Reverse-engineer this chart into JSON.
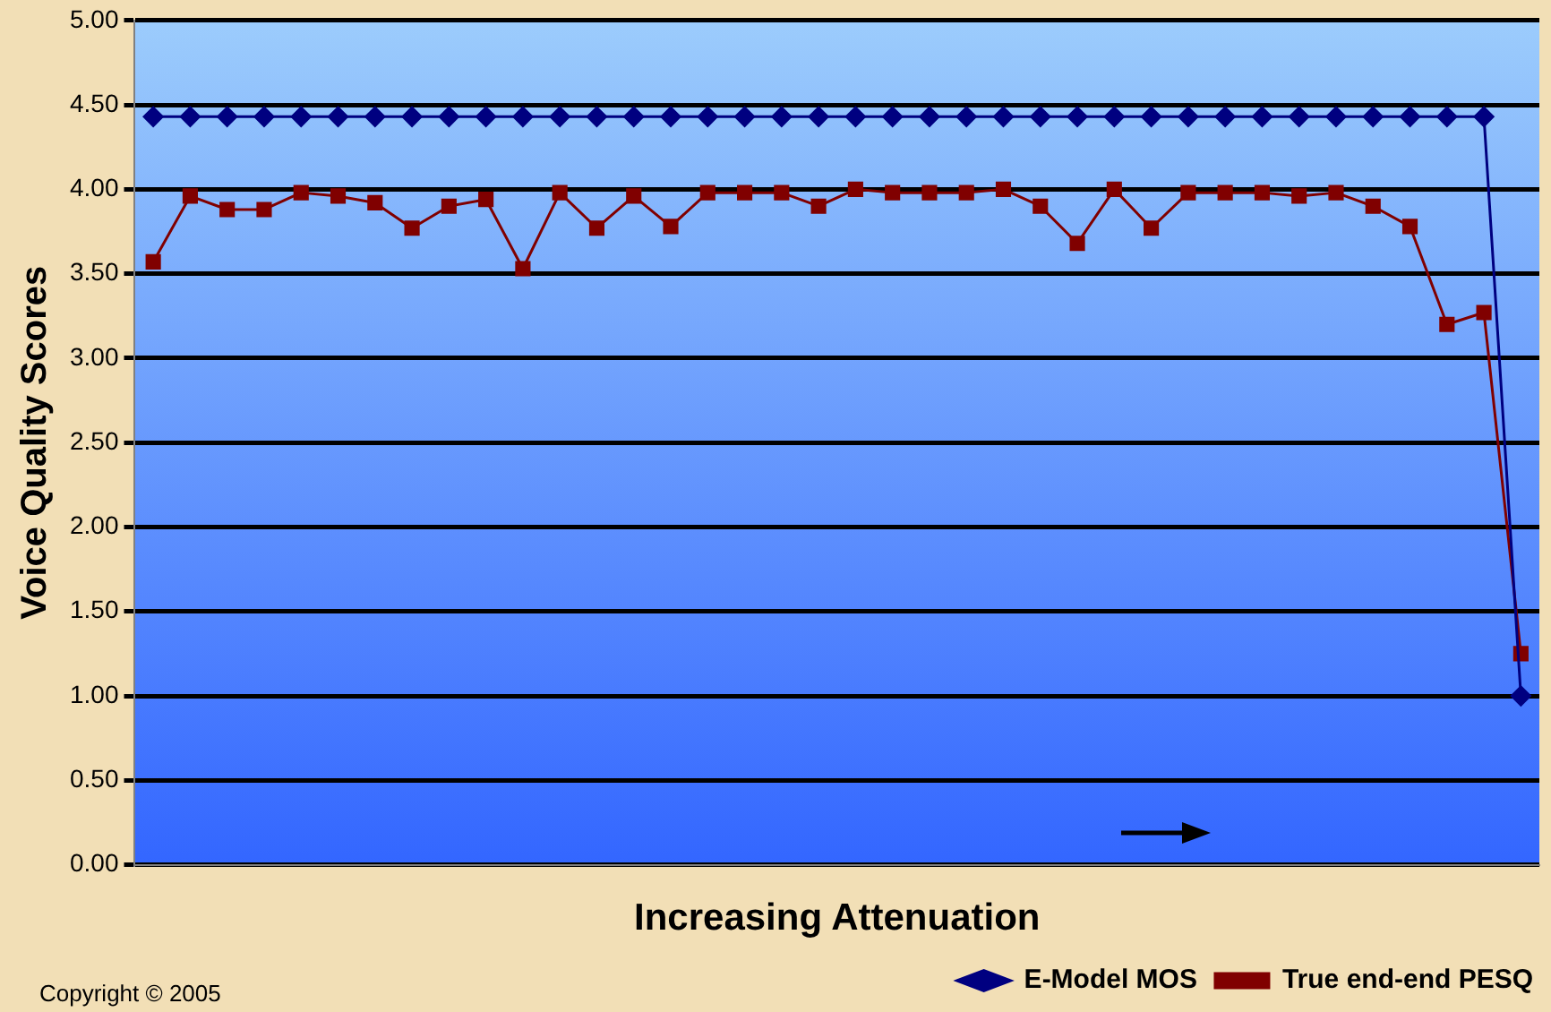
{
  "chart_data": {
    "type": "line",
    "xlabel": "Increasing Attenuation",
    "ylabel": "Voice Quality Scores",
    "categories": [
      null,
      null,
      null,
      null,
      null,
      null,
      null,
      null,
      null,
      null,
      null,
      null,
      null,
      null,
      null,
      null,
      null,
      null,
      null,
      null,
      null,
      null,
      null,
      null,
      null,
      null,
      null,
      null,
      null,
      null,
      null,
      null,
      null,
      null,
      null,
      null,
      null,
      null
    ],
    "series": [
      {
        "name": "E-Model MOS",
        "color": "#000080",
        "marker": "diamond",
        "values": [
          4.43,
          4.43,
          4.43,
          4.43,
          4.43,
          4.43,
          4.43,
          4.43,
          4.43,
          4.43,
          4.43,
          4.43,
          4.43,
          4.43,
          4.43,
          4.43,
          4.43,
          4.43,
          4.43,
          4.43,
          4.43,
          4.43,
          4.43,
          4.43,
          4.43,
          4.43,
          4.43,
          4.43,
          4.43,
          4.43,
          4.43,
          4.43,
          4.43,
          4.43,
          4.43,
          4.43,
          4.43,
          1.0
        ]
      },
      {
        "name": "True end-end PESQ",
        "color": "#800000",
        "marker": "square",
        "values": [
          3.57,
          3.96,
          3.88,
          3.88,
          3.98,
          3.96,
          3.92,
          3.77,
          3.9,
          3.94,
          3.53,
          3.98,
          3.77,
          3.96,
          3.78,
          3.98,
          3.98,
          3.98,
          3.9,
          4.0,
          3.98,
          3.98,
          3.98,
          4.0,
          3.9,
          3.68,
          4.0,
          3.77,
          3.98,
          3.98,
          3.98,
          3.96,
          3.98,
          3.9,
          3.78,
          3.2,
          3.27,
          1.25
        ]
      }
    ],
    "ylim": [
      0,
      5
    ],
    "yticks": [
      {
        "value": 0,
        "label": "0.00"
      },
      {
        "value": 0.5,
        "label": "0.50"
      },
      {
        "value": 1,
        "label": "1.00"
      },
      {
        "value": 1.5,
        "label": "1.50"
      },
      {
        "value": 2,
        "label": "2.00"
      },
      {
        "value": 2.5,
        "label": "2.50"
      },
      {
        "value": 3,
        "label": "3.00"
      },
      {
        "value": 3.5,
        "label": "3.50"
      },
      {
        "value": 4,
        "label": "4.00"
      },
      {
        "value": 4.5,
        "label": "4.50"
      },
      {
        "value": 5,
        "label": "5.00"
      }
    ],
    "grid": "y",
    "legend": "bottom right",
    "line_style": "solid",
    "annotations": [
      "Copyright © 2005"
    ]
  }
}
